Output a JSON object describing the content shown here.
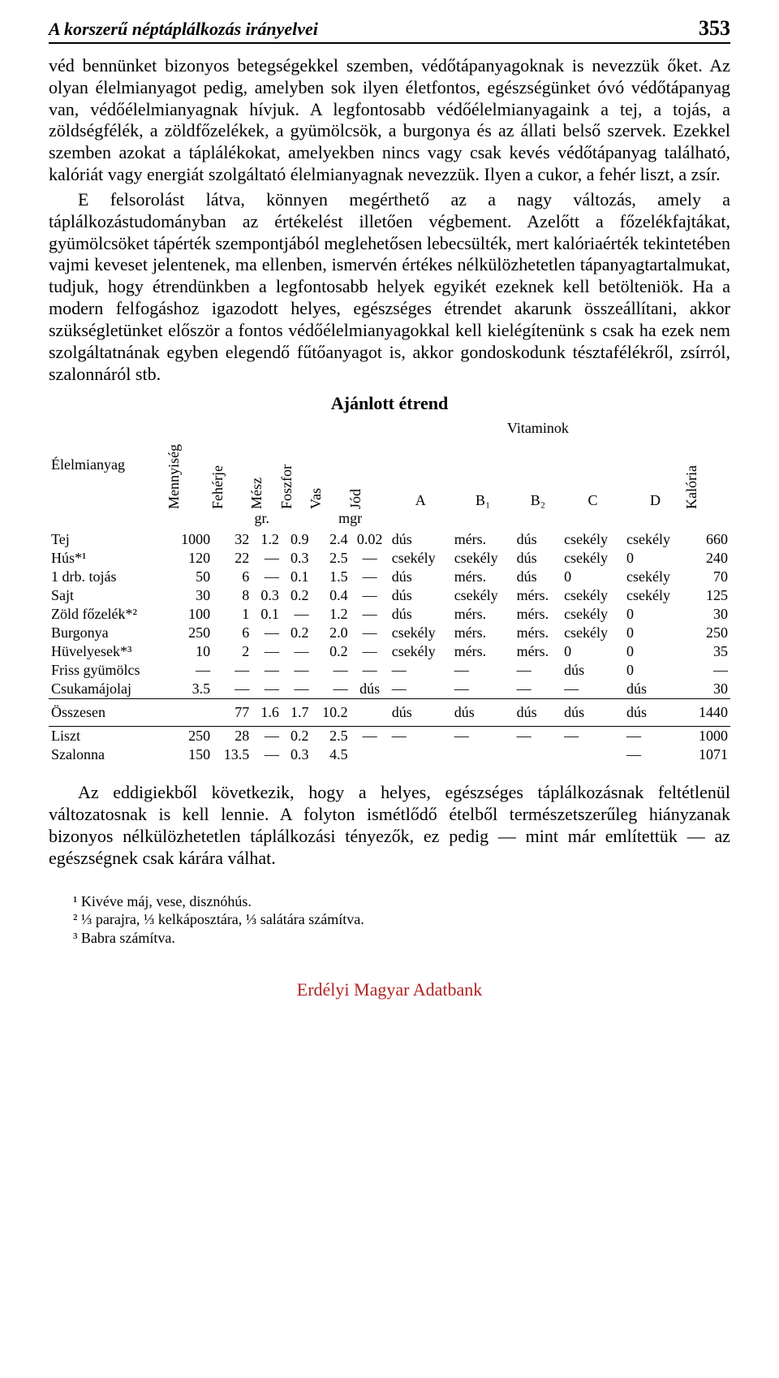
{
  "header": {
    "running_title": "A korszerű néptáplálkozás irányelvei",
    "page_number": "353"
  },
  "paragraphs": {
    "p1": "véd bennünket bizonyos betegségekkel szemben, védőtápanyagoknak is nevezzük őket. Az olyan élelmianyagot pedig, amelyben sok ilyen életfontos, egészségünket óvó védőtápanyag van, védőélelmianyagnak hívjuk. A legfontosabb védőélelmianyagaink a tej, a tojás, a zöldségfélék, a zöldfőzelékek, a gyümölcsök, a burgonya és az állati belső szervek. Ezekkel szemben azokat a táplálékokat, amelyekben nincs vagy csak kevés védőtápanyag található, kalóriát vagy energiát szolgáltató élelmianyagnak nevezzük. Ilyen a cukor, a fehér liszt, a zsír.",
    "p2": "E felsorolást látva, könnyen megérthető az a nagy változás, amely a táplálkozástudományban az értékelést illetően végbement. Azelőtt a főzelékfajtákat, gyümölcsöket tápérték szempontjából meglehetősen lebecsülték, mert kalóriaérték tekintetében vajmi keveset jelentenek, ma ellenben, ismervén értékes nélkülözhetetlen tápanyagtartalmukat, tudjuk, hogy étrendünkben a legfontosabb helyek egyikét ezeknek kell betölteniök. Ha a modern felfogáshoz igazodott helyes, egészséges étrendet akarunk összeállítani, akkor szükségletünket először a fontos védőélelmianyagokkal kell kielégítenünk s csak ha ezek nem szolgáltatnának egyben elegendő fűtőanyagot is, akkor gondoskodunk tésztafélékről, zsírról, szalonnáról stb.",
    "p3": "Az eddigiekből következik, hogy a helyes, egészséges táplálkozásnak feltétlenül változatosnak is kell lennie. A folyton ismétlődő ételből természetszerűleg hiányzanak bizonyos nélkülözhetetlen táplálkozási tényezők, ez pedig — mint már említettük — az egészségnek csak kárára válhat."
  },
  "table": {
    "title": "Ajánlott étrend",
    "super_vitamins": "Vitaminok",
    "col_labels": {
      "food": "Élelmianyag",
      "qty": "Mennyiség",
      "protein": "Fehérje",
      "lime": "Mész",
      "phos": "Foszfor",
      "iron": "Vas",
      "iod": "Jód",
      "vitA": "A",
      "vitB1": "B₁",
      "vitB2": "B₂",
      "vitC": "C",
      "vitD": "D",
      "kcal": "Kalória"
    },
    "units": {
      "gr": "gr.",
      "mgr": "mgr"
    },
    "rows": [
      {
        "name": "Tej",
        "qty": "1000",
        "protein": "32",
        "lime": "1.2",
        "phos": "0.9",
        "iron": "2.4",
        "iod": "0.02",
        "A": "dús",
        "B1": "mérs.",
        "B2": "dús",
        "C": "csekély",
        "D": "csekély",
        "kcal": "660"
      },
      {
        "name": "Hús*¹",
        "qty": "120",
        "protein": "22",
        "lime": "—",
        "phos": "0.3",
        "iron": "2.5",
        "iod": "—",
        "A": "csekély",
        "B1": "csekély",
        "B2": "dús",
        "C": "csekély",
        "D": "0",
        "kcal": "240"
      },
      {
        "name": "1 drb. tojás",
        "qty": "50",
        "protein": "6",
        "lime": "—",
        "phos": "0.1",
        "iron": "1.5",
        "iod": "—",
        "A": "dús",
        "B1": "mérs.",
        "B2": "dús",
        "C": "0",
        "D": "csekély",
        "kcal": "70"
      },
      {
        "name": "Sajt",
        "qty": "30",
        "protein": "8",
        "lime": "0.3",
        "phos": "0.2",
        "iron": "0.4",
        "iod": "—",
        "A": "dús",
        "B1": "csekély",
        "B2": "mérs.",
        "C": "csekély",
        "D": "csekély",
        "kcal": "125"
      },
      {
        "name": "Zöld főzelék*²",
        "qty": "100",
        "protein": "1",
        "lime": "0.1",
        "phos": "—",
        "iron": "1.2",
        "iod": "—",
        "A": "dús",
        "B1": "mérs.",
        "B2": "mérs.",
        "C": "csekély",
        "D": "0",
        "kcal": "30"
      },
      {
        "name": "Burgonya",
        "qty": "250",
        "protein": "6",
        "lime": "—",
        "phos": "0.2",
        "iron": "2.0",
        "iod": "—",
        "A": "csekély",
        "B1": "mérs.",
        "B2": "mérs.",
        "C": "csekély",
        "D": "0",
        "kcal": "250"
      },
      {
        "name": "Hüvelyesek*³",
        "qty": "10",
        "protein": "2",
        "lime": "—",
        "phos": "—",
        "iron": "0.2",
        "iod": "—",
        "A": "csekély",
        "B1": "mérs.",
        "B2": "mérs.",
        "C": "0",
        "D": "0",
        "kcal": "35"
      },
      {
        "name": "Friss gyümölcs",
        "qty": "—",
        "protein": "—",
        "lime": "—",
        "phos": "—",
        "iron": "—",
        "iod": "—",
        "A": "—",
        "B1": "—",
        "B2": "—",
        "C": "dús",
        "D": "0",
        "kcal": "—"
      },
      {
        "name": "Csukamájolaj",
        "qty": "3.5",
        "protein": "—",
        "lime": "—",
        "phos": "—",
        "iron": "—",
        "iod": "dús",
        "A": "—",
        "B1": "—",
        "B2": "—",
        "C": "—",
        "D": "dús",
        "kcal": "30"
      }
    ],
    "summary": {
      "name": "Összesen",
      "qty": "",
      "protein": "77",
      "lime": "1.6",
      "phos": "1.7",
      "iron": "10.2",
      "iod": "",
      "A": "dús",
      "B1": "dús",
      "B2": "dús",
      "C": "dús",
      "D": "dús",
      "kcal": "1440"
    },
    "extras": [
      {
        "name": "Liszt",
        "qty": "250",
        "protein": "28",
        "lime": "—",
        "phos": "0.2",
        "iron": "2.5",
        "iod": "—",
        "A": "—",
        "B1": "—",
        "B2": "—",
        "C": "—",
        "D": "—",
        "kcal": "1000"
      },
      {
        "name": "Szalonna",
        "qty": "150",
        "protein": "13.5",
        "lime": "—",
        "phos": "0.3",
        "iron": "4.5",
        "iod": "",
        "A": "",
        "B1": "",
        "B2": "",
        "C": "",
        "D": "—",
        "kcal": "1071"
      }
    ]
  },
  "footnotes": {
    "f1": "¹ Kivéve máj, vese, disznóhús.",
    "f2": "² ⅓ parajra, ⅓ kelkáposztára, ⅓ salátára számítva.",
    "f3": "³ Babra számítva."
  },
  "footer": "Erdélyi Magyar Adatbank"
}
